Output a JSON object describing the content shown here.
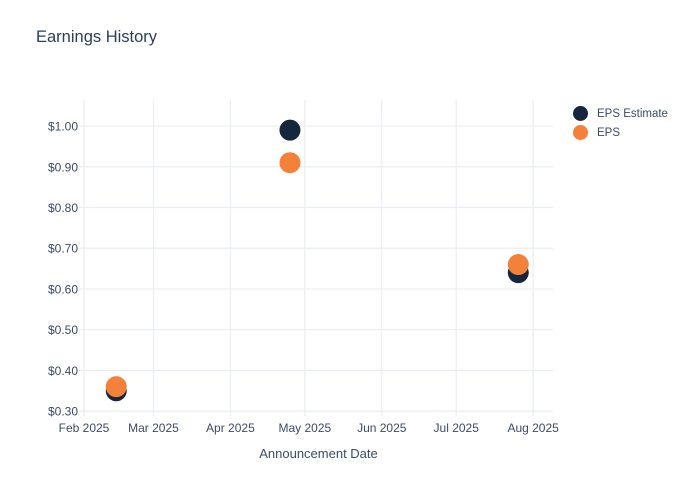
{
  "chart": {
    "title": "Earnings History",
    "xlabel": "Announcement Date"
  },
  "legend": {
    "items": [
      {
        "label": "EPS Estimate",
        "color": "#15263f"
      },
      {
        "label": "EPS",
        "color": "#f4813a"
      }
    ]
  },
  "colors": {
    "background": "#ffffff",
    "title_text": "#2c3e58",
    "tick_text": "#3c4b66",
    "grid": "#e9edf4",
    "eps_estimate": "#15263f",
    "eps": "#f4813a"
  },
  "chart_data": {
    "type": "scatter",
    "title": "Earnings History",
    "xlabel": "Announcement Date",
    "ylabel": "",
    "grid": true,
    "legend_position": "outside-right-top",
    "x_ticks": [
      "2025-02-01",
      "2025-03-01",
      "2025-04-01",
      "2025-05-01",
      "2025-06-01",
      "2025-07-01",
      "2025-08-01"
    ],
    "x_tick_labels": [
      "Feb 2025",
      "Mar 2025",
      "Apr 2025",
      "May 2025",
      "Jun 2025",
      "Jul 2025",
      "Aug 2025"
    ],
    "y_ticks": [
      0.3,
      0.4,
      0.5,
      0.6,
      0.7,
      0.8,
      0.9,
      1.0
    ],
    "y_tick_labels": [
      "$0.30",
      "$0.40",
      "$0.50",
      "$0.60",
      "$0.70",
      "$0.80",
      "$0.90",
      "$1.00"
    ],
    "xlim": [
      "2025-02-01",
      "2025-08-09"
    ],
    "ylim": [
      0.288,
      1.064
    ],
    "series": [
      {
        "name": "EPS Estimate",
        "color": "#15263f",
        "points": [
          {
            "x": "2025-02-14",
            "y": 0.35
          },
          {
            "x": "2025-04-25",
            "y": 0.99
          },
          {
            "x": "2025-07-26",
            "y": 0.64
          }
        ]
      },
      {
        "name": "EPS",
        "color": "#f4813a",
        "points": [
          {
            "x": "2025-02-14",
            "y": 0.36
          },
          {
            "x": "2025-04-25",
            "y": 0.91
          },
          {
            "x": "2025-07-26",
            "y": 0.66
          }
        ]
      }
    ]
  }
}
